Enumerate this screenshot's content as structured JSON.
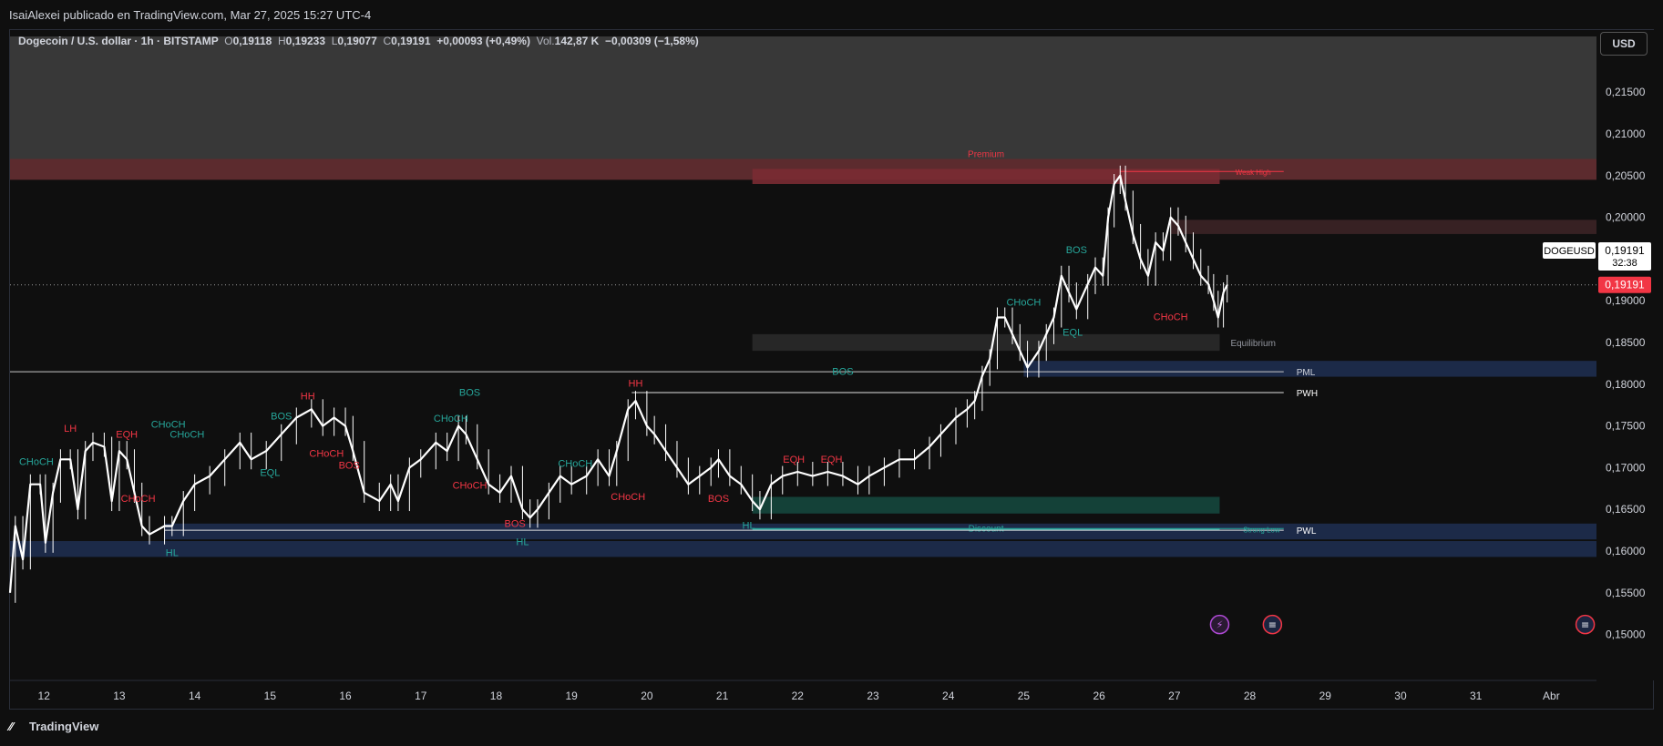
{
  "header": {
    "publisher_line": "IsaiAlexei publicado en TradingView.com, Mar 27, 2025 15:27 UTC-4"
  },
  "legend": {
    "symbol": "Dogecoin / U.S. dollar · 1h · BITSTAMP",
    "o_label": "O",
    "o": "0,19118",
    "h_label": "H",
    "h": "0,19233",
    "l_label": "L",
    "l": "0,19077",
    "c_label": "C",
    "c": "0,19191",
    "change": "+0,00093 (+0,49%)",
    "vol_label": "Vol.",
    "vol": "142,87 K",
    "vol_change": "−0,00309 (−1,58%)"
  },
  "currency_button": "USD",
  "footer": {
    "logo_icon": "tradingview-logo-icon",
    "brand": "TradingView"
  },
  "colors": {
    "background": "#0f0f0f",
    "bull": "#ffffff",
    "bear": "#ffffff",
    "teal": "#26a69a",
    "red": "#f23645",
    "blue_zone": "#1e2d4f",
    "premium_zone": "#5c2a2e",
    "discount_zone": "#15473d",
    "price_tag": "#f23645"
  },
  "chart_data": {
    "type": "candlestick",
    "title": "",
    "xlabel": "",
    "ylabel": "",
    "ylim": [
      0.1445,
      0.2195
    ],
    "x_ticks": [
      "12",
      "13",
      "14",
      "15",
      "16",
      "17",
      "18",
      "19",
      "20",
      "21",
      "22",
      "23",
      "24",
      "25",
      "26",
      "27",
      "28",
      "29",
      "30",
      "31",
      "Abr"
    ],
    "y_ticks": [
      "0,21500",
      "0,21000",
      "0,20500",
      "0,20000",
      "0,19500",
      "0,19000",
      "0,18500",
      "0,18000",
      "0,17500",
      "0,17000",
      "0,16500",
      "0,16000",
      "0,15500",
      "0,15000"
    ],
    "last_price": "0,19191",
    "symbol_tag": "DOGEUSD",
    "symbol_price": "0,19191",
    "countdown": "32:38",
    "price_path": [
      [
        11.55,
        0.155
      ],
      [
        11.62,
        0.163
      ],
      [
        11.72,
        0.159
      ],
      [
        11.82,
        0.168
      ],
      [
        11.95,
        0.168
      ],
      [
        12.02,
        0.161
      ],
      [
        12.12,
        0.167
      ],
      [
        12.22,
        0.171
      ],
      [
        12.35,
        0.171
      ],
      [
        12.45,
        0.165
      ],
      [
        12.55,
        0.172
      ],
      [
        12.65,
        0.173
      ],
      [
        12.8,
        0.1725
      ],
      [
        12.9,
        0.166
      ],
      [
        13.0,
        0.172
      ],
      [
        13.1,
        0.171
      ],
      [
        13.2,
        0.167
      ],
      [
        13.3,
        0.163
      ],
      [
        13.4,
        0.162
      ],
      [
        13.6,
        0.163
      ],
      [
        13.7,
        0.163
      ],
      [
        13.85,
        0.166
      ],
      [
        14.0,
        0.168
      ],
      [
        14.2,
        0.169
      ],
      [
        14.4,
        0.171
      ],
      [
        14.6,
        0.173
      ],
      [
        14.75,
        0.171
      ],
      [
        14.95,
        0.172
      ],
      [
        15.15,
        0.174
      ],
      [
        15.35,
        0.176
      ],
      [
        15.55,
        0.177
      ],
      [
        15.7,
        0.175
      ],
      [
        15.85,
        0.176
      ],
      [
        16.0,
        0.175
      ],
      [
        16.1,
        0.172
      ],
      [
        16.25,
        0.167
      ],
      [
        16.45,
        0.166
      ],
      [
        16.6,
        0.168
      ],
      [
        16.7,
        0.166
      ],
      [
        16.85,
        0.17
      ],
      [
        17.0,
        0.171
      ],
      [
        17.2,
        0.173
      ],
      [
        17.35,
        0.172
      ],
      [
        17.5,
        0.175
      ],
      [
        17.6,
        0.174
      ],
      [
        17.75,
        0.171
      ],
      [
        17.9,
        0.168
      ],
      [
        18.05,
        0.167
      ],
      [
        18.2,
        0.169
      ],
      [
        18.35,
        0.165
      ],
      [
        18.45,
        0.164
      ],
      [
        18.55,
        0.165
      ],
      [
        18.7,
        0.167
      ],
      [
        18.85,
        0.169
      ],
      [
        19.0,
        0.168
      ],
      [
        19.2,
        0.169
      ],
      [
        19.35,
        0.171
      ],
      [
        19.5,
        0.169
      ],
      [
        19.6,
        0.172
      ],
      [
        19.75,
        0.177
      ],
      [
        19.85,
        0.178
      ],
      [
        20.0,
        0.175
      ],
      [
        20.1,
        0.174
      ],
      [
        20.25,
        0.172
      ],
      [
        20.4,
        0.17
      ],
      [
        20.55,
        0.168
      ],
      [
        20.7,
        0.169
      ],
      [
        20.85,
        0.17
      ],
      [
        20.95,
        0.171
      ],
      [
        21.1,
        0.169
      ],
      [
        21.25,
        0.168
      ],
      [
        21.4,
        0.166
      ],
      [
        21.5,
        0.165
      ],
      [
        21.65,
        0.168
      ],
      [
        21.8,
        0.169
      ],
      [
        22.0,
        0.1695
      ],
      [
        22.2,
        0.169
      ],
      [
        22.4,
        0.1695
      ],
      [
        22.6,
        0.169
      ],
      [
        22.8,
        0.168
      ],
      [
        22.95,
        0.169
      ],
      [
        23.15,
        0.17
      ],
      [
        23.35,
        0.171
      ],
      [
        23.55,
        0.171
      ],
      [
        23.75,
        0.1725
      ],
      [
        23.9,
        0.174
      ],
      [
        24.1,
        0.176
      ],
      [
        24.25,
        0.177
      ],
      [
        24.35,
        0.178
      ],
      [
        24.45,
        0.181
      ],
      [
        24.55,
        0.183
      ],
      [
        24.65,
        0.188
      ],
      [
        24.75,
        0.188
      ],
      [
        24.85,
        0.186
      ],
      [
        24.95,
        0.184
      ],
      [
        25.05,
        0.182
      ],
      [
        25.2,
        0.184
      ],
      [
        25.3,
        0.186
      ],
      [
        25.4,
        0.188
      ],
      [
        25.5,
        0.193
      ],
      [
        25.6,
        0.191
      ],
      [
        25.7,
        0.189
      ],
      [
        25.85,
        0.192
      ],
      [
        25.95,
        0.194
      ],
      [
        26.05,
        0.193
      ],
      [
        26.12,
        0.2
      ],
      [
        26.2,
        0.204
      ],
      [
        26.28,
        0.205
      ],
      [
        26.35,
        0.202
      ],
      [
        26.45,
        0.198
      ],
      [
        26.55,
        0.195
      ],
      [
        26.65,
        0.193
      ],
      [
        26.75,
        0.197
      ],
      [
        26.85,
        0.196
      ],
      [
        26.95,
        0.2
      ],
      [
        27.05,
        0.199
      ],
      [
        27.15,
        0.197
      ],
      [
        27.25,
        0.195
      ],
      [
        27.35,
        0.193
      ],
      [
        27.45,
        0.192
      ],
      [
        27.52,
        0.19
      ],
      [
        27.58,
        0.188
      ],
      [
        27.65,
        0.191
      ],
      [
        27.7,
        0.1919
      ]
    ],
    "zones": [
      {
        "kind": "premium",
        "label": "Premium",
        "x0": 11.55,
        "x1": 32.6,
        "y0": 0.2045,
        "y1": 0.207
      },
      {
        "kind": "premium-inner",
        "label": "",
        "x0": 21.4,
        "x1": 27.6,
        "y0": 0.204,
        "y1": 0.2058
      },
      {
        "kind": "supply",
        "label": "",
        "x0": 26.95,
        "x1": 32.6,
        "y0": 0.198,
        "y1": 0.1997
      },
      {
        "kind": "equilibrium",
        "label": "Equilibrium",
        "x0": 21.4,
        "x1": 27.6,
        "y0": 0.184,
        "y1": 0.186
      },
      {
        "kind": "pml-zone",
        "label": "",
        "x0": 25.0,
        "x1": 32.6,
        "y0": 0.1809,
        "y1": 0.1828
      },
      {
        "kind": "demand",
        "label": "",
        "x0": 21.4,
        "x1": 27.6,
        "y0": 0.1645,
        "y1": 0.1665
      },
      {
        "kind": "pwl-zone",
        "label": "",
        "x0": 13.6,
        "x1": 32.6,
        "y0": 0.1614,
        "y1": 0.1633
      },
      {
        "kind": "pwl-zone2",
        "label": "",
        "x0": 11.55,
        "x1": 32.6,
        "y0": 0.1593,
        "y1": 0.1612
      },
      {
        "kind": "discount",
        "label": "Discount",
        "x0": 21.4,
        "x1": 27.6,
        "y0": 0.1625,
        "y1": 0.1627
      }
    ],
    "levels": [
      {
        "label": "PML",
        "x0": 11.55,
        "x1": 28.45,
        "y": 0.1815,
        "style": "solid-light"
      },
      {
        "label": "PWH",
        "x0": 19.8,
        "x1": 28.45,
        "y": 0.179,
        "style": "solid-white"
      },
      {
        "label": "PWL",
        "x0": 13.6,
        "x1": 28.45,
        "y": 0.1625,
        "style": "solid-white"
      },
      {
        "label": "Weak High",
        "x0": 26.28,
        "x1": 28.45,
        "y": 0.2055,
        "style": "solid-red"
      },
      {
        "label": "Strong Low",
        "x0": 21.4,
        "x1": 28.45,
        "y": 0.1627,
        "style": "solid-teal"
      }
    ],
    "annotations": [
      {
        "text": "CHoCH",
        "x": 11.9,
        "y": 0.1703,
        "color": "teal"
      },
      {
        "text": "LH",
        "x": 12.35,
        "y": 0.1743,
        "color": "red"
      },
      {
        "text": "EQH",
        "x": 13.1,
        "y": 0.1736,
        "color": "red"
      },
      {
        "text": "CHoCH",
        "x": 13.65,
        "y": 0.1748,
        "color": "teal"
      },
      {
        "text": "CHoCH",
        "x": 13.9,
        "y": 0.1736,
        "color": "teal"
      },
      {
        "text": "CHoCH",
        "x": 13.25,
        "y": 0.1659,
        "color": "red"
      },
      {
        "text": "HL",
        "x": 13.7,
        "y": 0.1594,
        "color": "teal"
      },
      {
        "text": "BOS",
        "x": 15.15,
        "y": 0.1758,
        "color": "teal"
      },
      {
        "text": "HH",
        "x": 15.5,
        "y": 0.1782,
        "color": "red"
      },
      {
        "text": "EQL",
        "x": 15.0,
        "y": 0.169,
        "color": "teal"
      },
      {
        "text": "CHoCH",
        "x": 15.75,
        "y": 0.1713,
        "color": "red"
      },
      {
        "text": "BOS",
        "x": 16.05,
        "y": 0.1699,
        "color": "red"
      },
      {
        "text": "BOS",
        "x": 17.65,
        "y": 0.1786,
        "color": "teal"
      },
      {
        "text": "CHoCH",
        "x": 17.4,
        "y": 0.1755,
        "color": "teal"
      },
      {
        "text": "CHoCH",
        "x": 17.65,
        "y": 0.1675,
        "color": "red"
      },
      {
        "text": "BOS",
        "x": 18.25,
        "y": 0.1629,
        "color": "red"
      },
      {
        "text": "HL",
        "x": 18.35,
        "y": 0.1607,
        "color": "teal"
      },
      {
        "text": "CHoCH",
        "x": 19.05,
        "y": 0.1701,
        "color": "teal"
      },
      {
        "text": "HH",
        "x": 19.85,
        "y": 0.1797,
        "color": "red"
      },
      {
        "text": "CHoCH",
        "x": 19.75,
        "y": 0.1661,
        "color": "red"
      },
      {
        "text": "BOS",
        "x": 20.95,
        "y": 0.1659,
        "color": "red"
      },
      {
        "text": "HL",
        "x": 21.35,
        "y": 0.1627,
        "color": "teal"
      },
      {
        "text": "EQH",
        "x": 21.95,
        "y": 0.1706,
        "color": "red"
      },
      {
        "text": "EQH",
        "x": 22.45,
        "y": 0.1706,
        "color": "red"
      },
      {
        "text": "BOS",
        "x": 22.6,
        "y": 0.1811,
        "color": "teal"
      },
      {
        "text": "CHoCH",
        "x": 25.0,
        "y": 0.1894,
        "color": "teal"
      },
      {
        "text": "BOS",
        "x": 25.7,
        "y": 0.1957,
        "color": "teal"
      },
      {
        "text": "EQL",
        "x": 25.65,
        "y": 0.1858,
        "color": "teal"
      },
      {
        "text": "CHoCH",
        "x": 26.95,
        "y": 0.1877,
        "color": "red"
      }
    ],
    "event_icons": [
      {
        "name": "lightning-icon",
        "x": 27.6,
        "y": 0.1512
      },
      {
        "name": "us-flag-icon",
        "x": 28.3,
        "y": 0.1512
      },
      {
        "name": "us-flag-icon",
        "x": 32.45,
        "y": 0.1512
      }
    ]
  }
}
